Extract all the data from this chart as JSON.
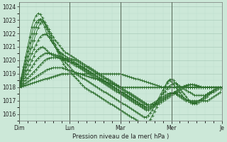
{
  "title": "Pression niveau de la mer( hPa )",
  "background_color": "#cce8d8",
  "plot_bg_color": "#cce8d8",
  "grid_major_color": "#aaccbb",
  "grid_minor_color": "#bbddcc",
  "line_color": "#2d6e2d",
  "ylim": [
    1015.5,
    1024.3
  ],
  "yticks": [
    1016,
    1017,
    1018,
    1019,
    1020,
    1021,
    1022,
    1023,
    1024
  ],
  "xdays": [
    "Dim",
    "Lun",
    "Mar",
    "Mer",
    "Je"
  ],
  "day_ticks": [
    0,
    24,
    48,
    72,
    96
  ],
  "n_points": 97,
  "series": [
    [
      1018.0,
      1018.05,
      1018.1,
      1018.15,
      1018.2,
      1018.25,
      1018.3,
      1018.35,
      1018.4,
      1018.45,
      1018.5,
      1018.55,
      1018.6,
      1018.65,
      1018.7,
      1018.75,
      1018.8,
      1018.85,
      1018.9,
      1018.95,
      1019.0,
      1019.0,
      1019.0,
      1019.0,
      1019.0,
      1019.0,
      1019.0,
      1019.0,
      1019.0,
      1019.0,
      1019.0,
      1019.0,
      1019.0,
      1019.0,
      1019.0,
      1019.0,
      1019.0,
      1019.0,
      1019.0,
      1019.0,
      1019.0,
      1019.0,
      1019.0,
      1019.0,
      1019.0,
      1019.0,
      1019.0,
      1019.0,
      1019.0,
      1018.95,
      1018.9,
      1018.85,
      1018.8,
      1018.75,
      1018.7,
      1018.65,
      1018.6,
      1018.55,
      1018.5,
      1018.45,
      1018.4,
      1018.35,
      1018.3,
      1018.25,
      1018.2,
      1018.15,
      1018.1,
      1018.05,
      1018.0,
      1018.0,
      1018.0,
      1018.0,
      1018.0,
      1018.0,
      1018.0,
      1018.0,
      1018.0,
      1018.0,
      1018.0,
      1018.0,
      1018.0,
      1018.0,
      1018.0,
      1018.0,
      1018.0,
      1018.0,
      1018.0,
      1018.0,
      1018.0,
      1018.0,
      1018.0,
      1018.0,
      1018.0,
      1018.0,
      1018.0,
      1018.0
    ],
    [
      1018.0,
      1018.1,
      1018.2,
      1018.3,
      1018.4,
      1018.5,
      1018.6,
      1018.7,
      1018.8,
      1018.9,
      1019.0,
      1019.1,
      1019.2,
      1019.3,
      1019.35,
      1019.4,
      1019.45,
      1019.45,
      1019.45,
      1019.45,
      1019.45,
      1019.4,
      1019.35,
      1019.3,
      1019.25,
      1019.2,
      1019.15,
      1019.1,
      1019.05,
      1019.0,
      1018.95,
      1018.9,
      1018.85,
      1018.8,
      1018.75,
      1018.7,
      1018.65,
      1018.6,
      1018.55,
      1018.5,
      1018.45,
      1018.4,
      1018.35,
      1018.3,
      1018.25,
      1018.2,
      1018.15,
      1018.1,
      1018.05,
      1018.0,
      1018.0,
      1018.0,
      1018.0,
      1018.0,
      1018.0,
      1018.0,
      1018.0,
      1018.0,
      1018.0,
      1018.0,
      1018.0,
      1018.0,
      1018.0,
      1018.0,
      1018.0,
      1018.0,
      1018.0,
      1018.0,
      1018.0,
      1018.0,
      1018.0,
      1018.0,
      1018.0,
      1018.0,
      1018.0,
      1018.0,
      1018.0,
      1018.0,
      1018.0,
      1018.0,
      1018.0,
      1018.0,
      1018.0,
      1018.0,
      1018.0,
      1018.0,
      1018.0,
      1018.0,
      1018.0,
      1018.0,
      1018.0,
      1018.0,
      1018.0,
      1018.0,
      1018.0,
      1018.0,
      1018.0
    ],
    [
      1018.0,
      1018.17,
      1018.33,
      1018.5,
      1018.67,
      1018.83,
      1019.0,
      1019.17,
      1019.33,
      1019.5,
      1019.67,
      1019.83,
      1020.0,
      1020.1,
      1020.17,
      1020.2,
      1020.2,
      1020.2,
      1020.2,
      1020.15,
      1020.1,
      1020.05,
      1020.0,
      1019.95,
      1019.9,
      1019.85,
      1019.8,
      1019.75,
      1019.7,
      1019.6,
      1019.5,
      1019.4,
      1019.3,
      1019.2,
      1019.1,
      1019.0,
      1018.9,
      1018.8,
      1018.7,
      1018.6,
      1018.5,
      1018.4,
      1018.3,
      1018.2,
      1018.1,
      1018.0,
      1017.9,
      1017.8,
      1017.7,
      1017.6,
      1017.5,
      1017.4,
      1017.3,
      1017.2,
      1017.1,
      1017.0,
      1016.9,
      1016.8,
      1016.7,
      1016.6,
      1016.5,
      1016.5,
      1016.5,
      1016.6,
      1016.7,
      1016.8,
      1016.9,
      1017.0,
      1017.1,
      1017.2,
      1017.3,
      1017.4,
      1017.5,
      1017.6,
      1017.7,
      1017.8,
      1017.9,
      1018.0,
      1018.0,
      1018.0,
      1018.0,
      1018.0,
      1018.0,
      1018.0,
      1018.0,
      1018.0,
      1018.0,
      1018.0,
      1018.0,
      1018.0,
      1018.0,
      1018.0,
      1018.0,
      1018.0,
      1018.0,
      1018.0,
      1018.0
    ],
    [
      1018.0,
      1018.25,
      1018.5,
      1018.75,
      1019.0,
      1019.25,
      1019.5,
      1019.75,
      1020.0,
      1020.17,
      1020.3,
      1020.4,
      1020.5,
      1020.55,
      1020.55,
      1020.5,
      1020.45,
      1020.4,
      1020.35,
      1020.3,
      1020.25,
      1020.2,
      1020.15,
      1020.1,
      1020.05,
      1020.0,
      1019.9,
      1019.8,
      1019.7,
      1019.6,
      1019.5,
      1019.4,
      1019.3,
      1019.2,
      1019.1,
      1019.0,
      1018.9,
      1018.8,
      1018.7,
      1018.6,
      1018.5,
      1018.4,
      1018.3,
      1018.2,
      1018.1,
      1018.0,
      1017.9,
      1017.8,
      1017.7,
      1017.6,
      1017.5,
      1017.4,
      1017.3,
      1017.2,
      1017.1,
      1017.0,
      1016.9,
      1016.8,
      1016.7,
      1016.6,
      1016.5,
      1016.5,
      1016.5,
      1016.6,
      1016.7,
      1016.8,
      1016.9,
      1017.0,
      1017.1,
      1017.2,
      1017.3,
      1017.4,
      1017.5,
      1017.6,
      1017.7,
      1017.8,
      1017.9,
      1018.0,
      1018.1,
      1018.15,
      1018.2,
      1018.2,
      1018.2,
      1018.2,
      1018.15,
      1018.1,
      1018.05,
      1018.0,
      1018.0,
      1018.0,
      1018.0,
      1018.0,
      1018.0,
      1018.0,
      1018.0,
      1018.0,
      1018.0
    ],
    [
      1018.0,
      1018.33,
      1018.67,
      1019.0,
      1019.33,
      1019.67,
      1020.0,
      1020.33,
      1020.67,
      1020.83,
      1020.95,
      1021.0,
      1020.9,
      1020.75,
      1020.6,
      1020.45,
      1020.35,
      1020.3,
      1020.25,
      1020.2,
      1020.15,
      1020.1,
      1020.1,
      1020.05,
      1020.0,
      1019.9,
      1019.8,
      1019.7,
      1019.6,
      1019.5,
      1019.4,
      1019.3,
      1019.2,
      1019.1,
      1019.0,
      1018.9,
      1018.8,
      1018.7,
      1018.6,
      1018.5,
      1018.4,
      1018.3,
      1018.2,
      1018.1,
      1018.0,
      1017.9,
      1017.8,
      1017.7,
      1017.6,
      1017.5,
      1017.4,
      1017.3,
      1017.2,
      1017.1,
      1017.0,
      1016.9,
      1016.8,
      1016.7,
      1016.6,
      1016.5,
      1016.4,
      1016.4,
      1016.4,
      1016.5,
      1016.6,
      1016.7,
      1016.8,
      1016.9,
      1017.0,
      1017.1,
      1017.2,
      1017.3,
      1017.4,
      1017.5,
      1017.6,
      1017.7,
      1017.8,
      1017.9,
      1018.0,
      1018.1,
      1018.15,
      1018.2,
      1018.2,
      1018.15,
      1018.1,
      1018.05,
      1018.0,
      1018.0,
      1018.0,
      1018.0,
      1018.0,
      1018.0,
      1018.0,
      1018.0,
      1018.0,
      1018.0,
      1018.0
    ],
    [
      1018.0,
      1018.42,
      1018.83,
      1019.25,
      1019.67,
      1020.08,
      1020.5,
      1020.83,
      1021.17,
      1021.5,
      1021.75,
      1021.9,
      1021.95,
      1021.9,
      1021.75,
      1021.5,
      1021.25,
      1021.0,
      1020.8,
      1020.65,
      1020.5,
      1020.4,
      1020.3,
      1020.2,
      1020.15,
      1020.1,
      1020.05,
      1020.0,
      1019.9,
      1019.8,
      1019.7,
      1019.6,
      1019.5,
      1019.4,
      1019.3,
      1019.2,
      1019.1,
      1019.0,
      1018.9,
      1018.8,
      1018.7,
      1018.6,
      1018.5,
      1018.4,
      1018.3,
      1018.2,
      1018.1,
      1018.0,
      1017.9,
      1017.8,
      1017.7,
      1017.6,
      1017.5,
      1017.4,
      1017.3,
      1017.2,
      1017.1,
      1017.0,
      1016.9,
      1016.8,
      1016.7,
      1016.6,
      1016.6,
      1016.7,
      1016.8,
      1016.9,
      1017.0,
      1017.1,
      1017.2,
      1017.3,
      1017.4,
      1017.5,
      1017.55,
      1017.6,
      1017.55,
      1017.5,
      1017.4,
      1017.3,
      1017.2,
      1017.1,
      1017.0,
      1016.9,
      1016.9,
      1016.9,
      1016.9,
      1017.0,
      1017.1,
      1017.2,
      1017.3,
      1017.4,
      1017.5,
      1017.6,
      1017.7,
      1017.8,
      1017.9,
      1018.0,
      1018.0
    ],
    [
      1018.0,
      1018.5,
      1019.0,
      1019.5,
      1020.0,
      1020.5,
      1021.0,
      1021.5,
      1022.0,
      1022.42,
      1022.75,
      1022.9,
      1022.85,
      1022.6,
      1022.3,
      1022.0,
      1021.75,
      1021.5,
      1021.3,
      1021.1,
      1020.9,
      1020.75,
      1020.6,
      1020.5,
      1020.4,
      1020.3,
      1020.2,
      1020.1,
      1020.0,
      1019.9,
      1019.8,
      1019.7,
      1019.6,
      1019.5,
      1019.4,
      1019.3,
      1019.2,
      1019.1,
      1019.0,
      1018.9,
      1018.8,
      1018.7,
      1018.6,
      1018.5,
      1018.4,
      1018.3,
      1018.2,
      1018.1,
      1018.0,
      1017.9,
      1017.8,
      1017.7,
      1017.6,
      1017.5,
      1017.4,
      1017.3,
      1017.2,
      1017.1,
      1017.0,
      1016.9,
      1016.8,
      1016.7,
      1016.7,
      1016.8,
      1016.9,
      1017.0,
      1017.1,
      1017.2,
      1017.3,
      1017.4,
      1017.5,
      1017.55,
      1017.6,
      1017.55,
      1017.5,
      1017.4,
      1017.3,
      1017.2,
      1017.1,
      1017.0,
      1017.0,
      1017.0,
      1017.0,
      1017.0,
      1017.0,
      1017.0,
      1017.0,
      1017.0,
      1017.0,
      1017.0,
      1017.1,
      1017.2,
      1017.3,
      1017.4,
      1017.5,
      1017.6,
      1018.0
    ],
    [
      1018.0,
      1018.58,
      1019.17,
      1019.75,
      1020.33,
      1020.92,
      1021.5,
      1022.0,
      1022.5,
      1022.83,
      1023.0,
      1022.83,
      1022.5,
      1022.0,
      1021.75,
      1021.5,
      1021.25,
      1021.0,
      1020.8,
      1020.6,
      1020.4,
      1020.2,
      1020.1,
      1020.0,
      1019.9,
      1019.8,
      1019.7,
      1019.6,
      1019.5,
      1019.4,
      1019.3,
      1019.2,
      1019.1,
      1019.0,
      1018.9,
      1018.8,
      1018.7,
      1018.6,
      1018.5,
      1018.4,
      1018.3,
      1018.2,
      1018.1,
      1018.0,
      1017.9,
      1017.8,
      1017.7,
      1017.6,
      1017.5,
      1017.4,
      1017.3,
      1017.2,
      1017.1,
      1017.0,
      1016.9,
      1016.8,
      1016.7,
      1016.6,
      1016.5,
      1016.4,
      1016.3,
      1016.3,
      1016.4,
      1016.5,
      1016.7,
      1016.9,
      1017.1,
      1017.3,
      1017.5,
      1017.7,
      1017.9,
      1018.1,
      1018.2,
      1018.3,
      1018.3,
      1018.2,
      1018.1,
      1018.0,
      1017.9,
      1017.8,
      1017.7,
      1017.6,
      1017.5,
      1017.4,
      1017.4,
      1017.4,
      1017.4,
      1017.4,
      1017.4,
      1017.5,
      1017.6,
      1017.7,
      1017.8,
      1017.9,
      1018.0,
      1018.0,
      1018.0
    ],
    [
      1018.0,
      1018.67,
      1019.33,
      1020.0,
      1020.67,
      1021.33,
      1022.0,
      1022.5,
      1022.83,
      1023.0,
      1023.08,
      1023.0,
      1022.83,
      1022.5,
      1022.17,
      1021.83,
      1021.5,
      1021.17,
      1020.83,
      1020.5,
      1020.25,
      1020.0,
      1019.83,
      1019.67,
      1019.5,
      1019.33,
      1019.17,
      1019.0,
      1018.9,
      1018.8,
      1018.7,
      1018.6,
      1018.5,
      1018.4,
      1018.3,
      1018.2,
      1018.1,
      1018.0,
      1017.9,
      1017.8,
      1017.7,
      1017.6,
      1017.5,
      1017.4,
      1017.3,
      1017.2,
      1017.1,
      1017.0,
      1016.9,
      1016.8,
      1016.7,
      1016.6,
      1016.5,
      1016.4,
      1016.3,
      1016.2,
      1016.1,
      1016.0,
      1015.9,
      1015.8,
      1015.8,
      1015.9,
      1016.1,
      1016.3,
      1016.6,
      1016.9,
      1017.2,
      1017.5,
      1017.8,
      1018.1,
      1018.4,
      1018.55,
      1018.6,
      1018.5,
      1018.3,
      1018.1,
      1017.9,
      1017.7,
      1017.5,
      1017.3,
      1017.1,
      1016.9,
      1016.8,
      1016.8,
      1016.8,
      1016.9,
      1017.0,
      1017.1,
      1017.2,
      1017.3,
      1017.5,
      1017.6,
      1017.7,
      1017.8,
      1017.9,
      1018.0,
      1018.0
    ],
    [
      1018.0,
      1018.75,
      1019.5,
      1020.25,
      1021.0,
      1021.75,
      1022.5,
      1023.0,
      1023.33,
      1023.5,
      1023.42,
      1023.17,
      1022.75,
      1022.33,
      1022.0,
      1021.67,
      1021.33,
      1021.0,
      1020.67,
      1020.33,
      1020.0,
      1019.75,
      1019.5,
      1019.33,
      1019.17,
      1019.0,
      1018.83,
      1018.67,
      1018.5,
      1018.33,
      1018.17,
      1018.0,
      1017.9,
      1017.8,
      1017.7,
      1017.6,
      1017.5,
      1017.4,
      1017.3,
      1017.2,
      1017.1,
      1017.0,
      1016.9,
      1016.8,
      1016.7,
      1016.6,
      1016.5,
      1016.4,
      1016.3,
      1016.2,
      1016.1,
      1016.0,
      1015.9,
      1015.8,
      1015.7,
      1015.6,
      1015.5,
      1015.4,
      1015.3,
      1015.3,
      1015.3,
      1015.4,
      1015.6,
      1015.9,
      1016.2,
      1016.5,
      1016.9,
      1017.2,
      1017.6,
      1018.0,
      1018.3,
      1018.5,
      1018.4,
      1018.2,
      1018.0,
      1017.8,
      1017.6,
      1017.4,
      1017.2,
      1017.1,
      1017.0,
      1016.9,
      1016.85,
      1016.85,
      1016.9,
      1017.0,
      1017.1,
      1017.2,
      1017.4,
      1017.5,
      1017.6,
      1017.7,
      1017.8,
      1017.9,
      1018.0,
      1018.0,
      1018.0
    ]
  ]
}
